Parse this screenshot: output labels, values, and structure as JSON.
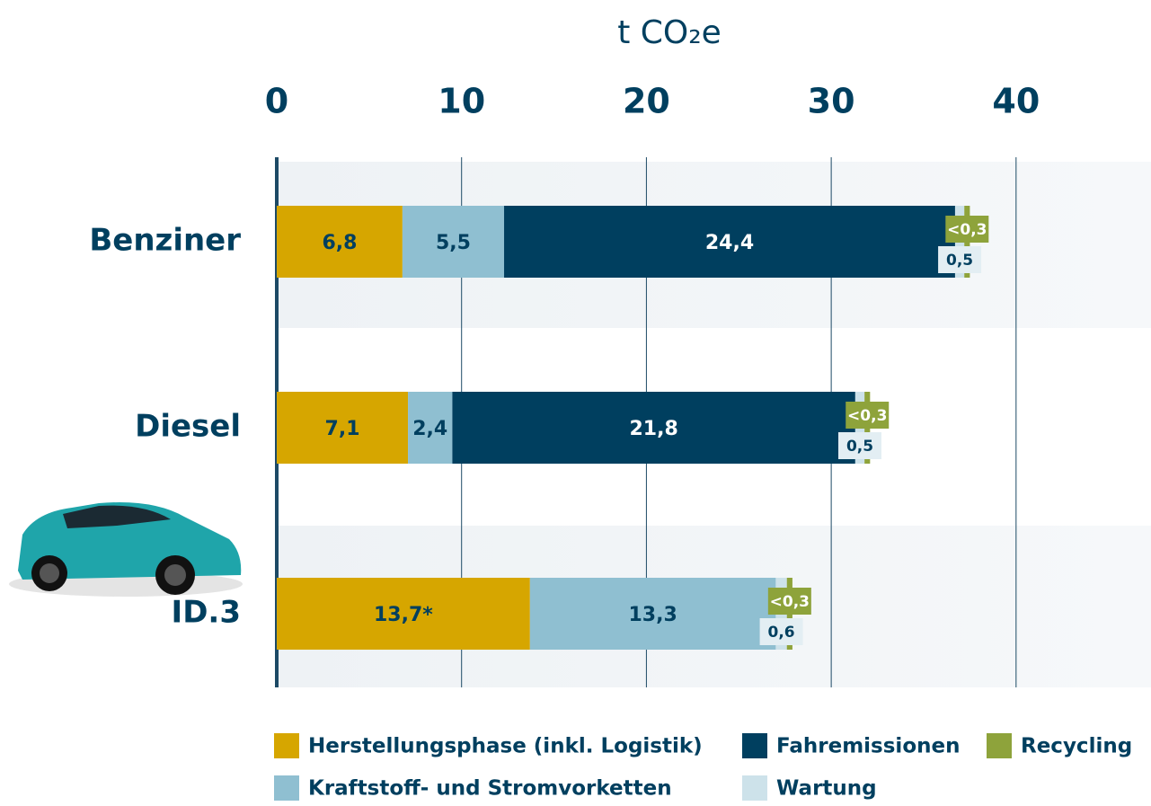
{
  "chart_data": {
    "type": "stacked-barh",
    "title": "t CO₂e",
    "categories": [
      "Benziner",
      "Diesel",
      "ID.3"
    ],
    "series": [
      {
        "name": "Herstellungsphase (inkl. Logistik)",
        "color": "#d6a600",
        "values": [
          6.8,
          7.1,
          13.7
        ],
        "value_labels": [
          "6,8",
          "7,1",
          "13,7*"
        ]
      },
      {
        "name": "Kraftstoff- und Stromvorketten",
        "color": "#8fbfd1",
        "values": [
          5.5,
          2.4,
          13.3
        ],
        "value_labels": [
          "5,5",
          "2,4",
          "13,3"
        ]
      },
      {
        "name": "Fahremissionen",
        "color": "#003f5f",
        "values": [
          24.4,
          21.8,
          null
        ],
        "value_labels": [
          "24,4",
          "21,8",
          null
        ]
      },
      {
        "name": "Wartung",
        "color": "#cde2ea",
        "values": [
          0.5,
          0.5,
          0.6
        ],
        "value_labels": [
          "0,5",
          "0,5",
          "0,6"
        ]
      },
      {
        "name": "Recycling",
        "color": "#8ea33b",
        "values": [
          0.3,
          0.3,
          0.3
        ],
        "value_labels": [
          "<0,3",
          "<0,3",
          "<0,3"
        ]
      }
    ],
    "xlim": [
      0,
      47.3
    ],
    "xticks": [
      0,
      10,
      20,
      30,
      40
    ],
    "grid": true
  }
}
